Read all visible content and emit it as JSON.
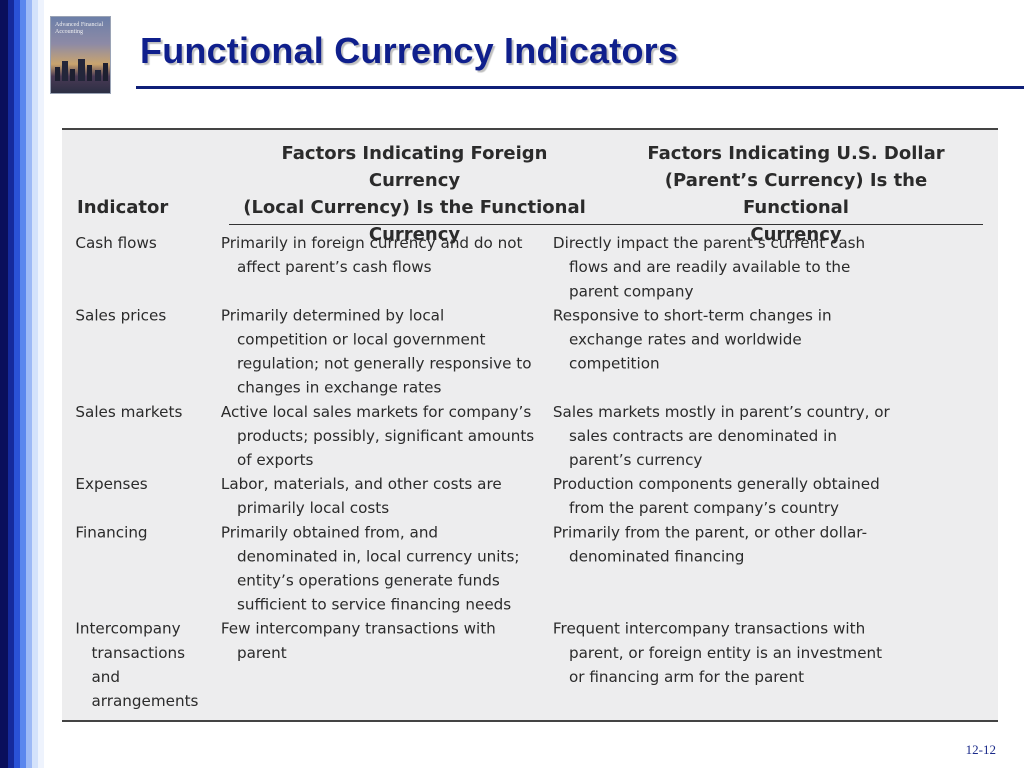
{
  "slide": {
    "title": "Functional Currency Indicators",
    "number": "12-12"
  },
  "cover": {
    "title_text": "Advanced Financial Accounting",
    "icon": "book-cover-city-skyline"
  },
  "table": {
    "headers": {
      "indicator": "Indicator",
      "foreign": [
        "Factors Indicating Foreign Currency",
        "(Local Currency) Is the Functional",
        "Currency"
      ],
      "dollar": [
        "Factors Indicating U.S. Dollar",
        "(Parent’s Currency) Is the Functional",
        "Currency"
      ]
    },
    "rows": [
      {
        "indicator": "Cash flows",
        "foreign": "Primarily in foreign currency and do not affect parent’s cash flows",
        "dollar": "Directly impact the parent’s current cash flows and are readily available to the parent company"
      },
      {
        "indicator": "Sales prices",
        "foreign": "Primarily determined by local competition or local government regulation; not generally responsive to changes in exchange rates",
        "dollar": "Responsive to short-term changes in exchange rates and worldwide competition"
      },
      {
        "indicator": "Sales markets",
        "foreign": "Active local sales markets for company’s products; possibly, significant amounts of exports",
        "dollar": "Sales markets mostly in parent’s country, or sales contracts are denominated in parent’s currency"
      },
      {
        "indicator": "Expenses",
        "foreign": "Labor, materials, and other costs are primarily local costs",
        "dollar": "Production components generally obtained from the parent company’s country"
      },
      {
        "indicator": "Financing",
        "foreign": "Primarily obtained from, and denominated in, local currency units; entity’s operations generate funds sufficient to service financing needs",
        "dollar": "Primarily from the parent, or other dollar-denominated financing"
      },
      {
        "indicator": "Intercompany transactions and arrangements",
        "foreign": "Few intercompany transactions with parent",
        "dollar": "Frequent intercompany transactions with parent, or foreign entity is an investment or financing arm for the parent"
      }
    ]
  }
}
